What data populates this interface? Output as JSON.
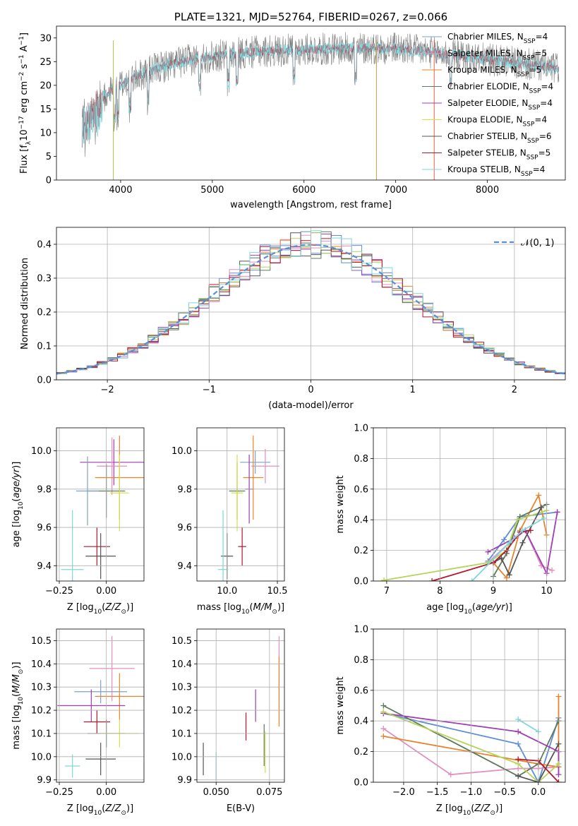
{
  "chart_data": [
    {
      "type": "line",
      "title": "PLATE=1321, MJD=52764, FIBERID=0267, z=0.066",
      "xlabel": "wavelength [Angstrom, rest frame]",
      "ylabel": "Flux [f_λ 10^-17 erg cm^-2 s^-1 A^-1]",
      "xlim": [
        3300,
        8850
      ],
      "ylim": [
        0,
        32.5
      ],
      "xticks": [
        "4000",
        "5000",
        "6000",
        "7000",
        "8000"
      ],
      "yticks": [
        "0",
        "5",
        "10",
        "15",
        "20",
        "25",
        "30"
      ],
      "legend": "upper-right",
      "legend_entries": [
        {
          "name": "Chabrier MILES, N_SSP=4",
          "label": "Chabrier MILES, N",
          "sub": "SSP",
          "tail": "=4",
          "color": "#7aa3c7"
        },
        {
          "name": "Salpeter MILES, N_SSP=5",
          "label": "Salpeter MILES, N",
          "sub": "SSP",
          "tail": "=5",
          "color": "#e38fbf"
        },
        {
          "name": "Kroupa MILES, N_SSP=5",
          "label": "Kroupa MILES, N",
          "sub": "SSP",
          "tail": "=5",
          "color": "#e8832b"
        },
        {
          "name": "Chabrier ELODIE, N_SSP=4",
          "label": "Chabrier ELODIE, N",
          "sub": "SSP",
          "tail": "=4",
          "color": "#5e7a5e"
        },
        {
          "name": "Salpeter ELODIE, N_SSP=4",
          "label": "Salpeter ELODIE, N",
          "sub": "SSP",
          "tail": "=4",
          "color": "#a03cb4"
        },
        {
          "name": "Kroupa ELODIE, N_SSP=4",
          "label": "Kroupa ELODIE, N",
          "sub": "SSP",
          "tail": "=4",
          "color": "#d4e04a"
        },
        {
          "name": "Chabrier STELIB, N_SSP=6",
          "label": "Chabrier STELIB, N",
          "sub": "SSP",
          "tail": "=6",
          "color": "#555555"
        },
        {
          "name": "Salpeter STELIB, N_SSP=5",
          "label": "Salpeter STELIB, N",
          "sub": "SSP",
          "tail": "=5",
          "color": "#b2182b"
        },
        {
          "name": "Kroupa STELIB, N_SSP=4",
          "label": "Kroupa STELIB, N",
          "sub": "SSP",
          "tail": "=4",
          "color": "#7fd6dc"
        }
      ],
      "data_color": "#808080",
      "model_color": "#7fd6dc",
      "spikes": [
        {
          "x": 3920,
          "color": "#b8c24a"
        },
        {
          "x": 6790,
          "color": "#c2a04a"
        },
        {
          "x": 7420,
          "color": "#e0604a"
        }
      ]
    },
    {
      "type": "histogram",
      "xlabel": "(data-model)/error",
      "ylabel": "Normed distribution",
      "xlim": [
        -2.5,
        2.5
      ],
      "ylim": [
        0,
        0.45
      ],
      "xticks": [
        "−2",
        "−1",
        "0",
        "1",
        "2"
      ],
      "yticks": [
        "0.0",
        "0.1",
        "0.2",
        "0.3",
        "0.4"
      ],
      "bin_width": 0.1,
      "legend": "upper-right",
      "reference_curve": {
        "label": "𝒩(0, 1)",
        "mean": 0,
        "sigma": 1,
        "color": "#5b8ed6"
      },
      "series_colors": [
        "#5b8ed6",
        "#e38fbf",
        "#e8832b",
        "#5e7a5e",
        "#a03cb4",
        "#b5d45a",
        "#555555",
        "#b2182b",
        "#7fd6dc"
      ]
    },
    {
      "type": "errorbar",
      "xlabel": "Z [log10(Z/Z⊙)]",
      "ylabel": "age  [log10(age/yr)]",
      "xlim": [
        -0.265,
        0.2
      ],
      "ylim": [
        9.32,
        10.12
      ],
      "xticks": [
        "−0.25",
        "0.00"
      ],
      "yticks": [
        "9.4",
        "9.6",
        "9.8",
        "10.0"
      ],
      "points": [
        {
          "x": 0.04,
          "y": 9.94,
          "xerr": 0.18,
          "yerr": 0.12,
          "color": "#a03cb4"
        },
        {
          "x": 0.03,
          "y": 9.92,
          "xerr": 0.08,
          "yerr": 0.15,
          "color": "#e38fbf"
        },
        {
          "x": 0.07,
          "y": 9.86,
          "xerr": 0.13,
          "yerr": 0.22,
          "color": "#e8832b"
        },
        {
          "x": 0.0,
          "y": 9.79,
          "xerr": 0.1,
          "yerr": 0.14,
          "color": "#5e7a5e"
        },
        {
          "x": 0.07,
          "y": 9.78,
          "xerr": 0.05,
          "yerr": 0.2,
          "color": "#d4e04a"
        },
        {
          "x": -0.1,
          "y": 9.79,
          "xerr": 0.06,
          "yerr": 0.18,
          "color": "#7aa3c7"
        },
        {
          "x": -0.05,
          "y": 9.5,
          "xerr": 0.07,
          "yerr": 0.1,
          "color": "#b2182b"
        },
        {
          "x": -0.03,
          "y": 9.45,
          "xerr": 0.08,
          "yerr": 0.12,
          "color": "#555555"
        },
        {
          "x": -0.18,
          "y": 9.38,
          "xerr": 0.06,
          "yerr": 0.31,
          "color": "#7fd6dc"
        }
      ]
    },
    {
      "type": "errorbar",
      "xlabel": "mass [log10(M/M⊙)]",
      "xlim": [
        9.7,
        10.57
      ],
      "ylim": [
        9.32,
        10.12
      ],
      "xticks": [
        "10.0",
        "10.5"
      ],
      "yticks": [
        "9.4",
        "9.6",
        "9.8",
        "10.0"
      ],
      "points": [
        {
          "x": 10.28,
          "y": 9.94,
          "xerr": 0.15,
          "yerr": 0.06,
          "color": "#7aa3c7"
        },
        {
          "x": 10.38,
          "y": 9.92,
          "xerr": 0.14,
          "yerr": 0.09,
          "color": "#e38fbf"
        },
        {
          "x": 10.26,
          "y": 9.86,
          "xerr": 0.1,
          "yerr": 0.22,
          "color": "#e8832b"
        },
        {
          "x": 10.1,
          "y": 9.79,
          "xerr": 0.08,
          "yerr": 0.15,
          "color": "#5e7a5e"
        },
        {
          "x": 10.1,
          "y": 9.78,
          "xerr": 0.06,
          "yerr": 0.2,
          "color": "#d4e04a"
        },
        {
          "x": 10.22,
          "y": 9.8,
          "xerr": 0.04,
          "yerr": 0.18,
          "color": "#a03cb4"
        },
        {
          "x": 10.15,
          "y": 9.5,
          "xerr": 0.04,
          "yerr": 0.1,
          "color": "#b2182b"
        },
        {
          "x": 10.0,
          "y": 9.45,
          "xerr": 0.06,
          "yerr": 0.12,
          "color": "#555555"
        },
        {
          "x": 9.96,
          "y": 9.38,
          "xerr": 0.05,
          "yerr": 0.31,
          "color": "#7fd6dc"
        }
      ]
    },
    {
      "type": "line",
      "xlabel": "age  [log10(age/yr)]",
      "ylabel": "mass weight",
      "xlim": [
        6.75,
        10.35
      ],
      "ylim": [
        0,
        1.0
      ],
      "xticks": [
        "7",
        "8",
        "9",
        "10"
      ],
      "yticks": [
        "0.0",
        "0.2",
        "0.4",
        "0.6",
        "0.8",
        "1.0"
      ],
      "series": [
        {
          "color": "#5b8ed6",
          "x": [
            8.9,
            9.2,
            9.5,
            10.2
          ],
          "y": [
            0.13,
            0.27,
            0.42,
            0.45
          ]
        },
        {
          "color": "#e38fbf",
          "x": [
            8.9,
            9.3,
            9.6,
            9.9,
            10.1
          ],
          "y": [
            0.12,
            0.25,
            0.33,
            0.1,
            0.07
          ]
        },
        {
          "color": "#e8832b",
          "x": [
            9.0,
            9.25,
            9.5,
            9.85,
            10.0
          ],
          "y": [
            0.12,
            0.02,
            0.33,
            0.56,
            0.3
          ]
        },
        {
          "color": "#5e7a5e",
          "x": [
            9.0,
            9.25,
            9.5,
            10.0
          ],
          "y": [
            0.03,
            0.18,
            0.42,
            0.5
          ]
        },
        {
          "color": "#a03cb4",
          "x": [
            8.9,
            9.4,
            9.6,
            10.0,
            10.2
          ],
          "y": [
            0.19,
            0.28,
            0.33,
            0.05,
            0.45
          ]
        },
        {
          "color": "#b5d45a",
          "x": [
            6.95,
            8.9,
            9.25,
            9.45,
            10.0
          ],
          "y": [
            0.005,
            0.12,
            0.2,
            0.4,
            0.46
          ]
        },
        {
          "color": "#555555",
          "x": [
            9.0,
            9.15,
            9.3,
            9.55,
            9.9
          ],
          "y": [
            0.12,
            0.15,
            0.04,
            0.25,
            0.48
          ]
        },
        {
          "color": "#b2182b",
          "x": [
            7.85,
            9.0,
            9.25,
            9.5,
            9.7
          ],
          "y": [
            0.0,
            0.12,
            0.2,
            0.32,
            0.33
          ]
        },
        {
          "color": "#7fd6dc",
          "x": [
            8.6,
            9.3,
            9.55,
            9.95
          ],
          "y": [
            0.0,
            0.25,
            0.33,
            0.41
          ]
        }
      ]
    },
    {
      "type": "errorbar",
      "xlabel": "Z [log10(Z/Z⊙)]",
      "ylabel": "mass [log10(M/M⊙)]",
      "xlim": [
        -0.265,
        0.2
      ],
      "ylim": [
        9.89,
        10.55
      ],
      "xticks": [
        "−0.25",
        "0.00"
      ],
      "yticks": [
        "9.9",
        "10.0",
        "10.1",
        "10.2",
        "10.3",
        "10.4",
        "10.5"
      ],
      "points": [
        {
          "x": 0.03,
          "y": 10.38,
          "xerr": 0.12,
          "yerr": 0.14,
          "color": "#e38fbf"
        },
        {
          "x": -0.03,
          "y": 10.28,
          "xerr": 0.14,
          "yerr": 0.05,
          "color": "#7aa3c7"
        },
        {
          "x": 0.07,
          "y": 10.26,
          "xerr": 0.13,
          "yerr": 0.1,
          "color": "#e8832b"
        },
        {
          "x": -0.08,
          "y": 10.22,
          "xerr": 0.18,
          "yerr": 0.07,
          "color": "#a03cb4"
        },
        {
          "x": -0.05,
          "y": 10.15,
          "xerr": 0.07,
          "yerr": 0.05,
          "color": "#b2182b"
        },
        {
          "x": 0.0,
          "y": 10.1,
          "xerr": 0.1,
          "yerr": 0.06,
          "color": "#5e7a5e"
        },
        {
          "x": 0.07,
          "y": 10.1,
          "xerr": 0.1,
          "yerr": 0.06,
          "color": "#d4e04a"
        },
        {
          "x": -0.03,
          "y": 9.99,
          "xerr": 0.08,
          "yerr": 0.07,
          "color": "#555555"
        },
        {
          "x": -0.18,
          "y": 9.96,
          "xerr": 0.04,
          "yerr": 0.05,
          "color": "#7fd6dc"
        }
      ]
    },
    {
      "type": "errorbar",
      "xlabel": "E(B-V)",
      "xlim": [
        0.041,
        0.082
      ],
      "ylim": [
        9.89,
        10.55
      ],
      "xticks": [
        "0.050",
        "0.075"
      ],
      "yticks": [
        "9.9",
        "10.0",
        "10.1",
        "10.2",
        "10.3",
        "10.4",
        "10.5"
      ],
      "points": [
        {
          "x": 0.0795,
          "y": 10.38,
          "xerr": 0,
          "yerr": 0.14,
          "color": "#e38fbf"
        },
        {
          "x": 0.0795,
          "y": 10.28,
          "xerr": 0,
          "yerr": 0.15,
          "color": "#e8832b"
        },
        {
          "x": 0.0685,
          "y": 10.22,
          "xerr": 0,
          "yerr": 0.07,
          "color": "#a03cb4"
        },
        {
          "x": 0.064,
          "y": 10.13,
          "xerr": 0,
          "yerr": 0.06,
          "color": "#b2182b"
        },
        {
          "x": 0.0725,
          "y": 10.05,
          "xerr": 0,
          "yerr": 0.09,
          "color": "#5e7a5e"
        },
        {
          "x": 0.073,
          "y": 10.02,
          "xerr": 0,
          "yerr": 0.09,
          "color": "#d4e04a"
        },
        {
          "x": 0.044,
          "y": 9.99,
          "xerr": 0,
          "yerr": 0.07,
          "color": "#555555"
        },
        {
          "x": 0.05,
          "y": 9.96,
          "xerr": 0,
          "yerr": 0.06,
          "color": "#7fd6dc"
        }
      ]
    },
    {
      "type": "line",
      "xlabel": "Z [log10(Z/Z⊙)]",
      "ylabel": "mass weight",
      "xlim": [
        -2.45,
        0.4
      ],
      "ylim": [
        0,
        1.0
      ],
      "xticks": [
        "−2.0",
        "−1.5",
        "−1.0",
        "−0.5",
        "0.0"
      ],
      "yticks": [
        "0.0",
        "0.2",
        "0.4",
        "0.6",
        "0.8",
        "1.0"
      ],
      "series": [
        {
          "color": "#5b8ed6",
          "x": [
            -2.3,
            -0.3,
            0.0,
            0.3
          ],
          "y": [
            0.45,
            0.25,
            0.0,
            0.42
          ]
        },
        {
          "color": "#e38fbf",
          "x": [
            -2.3,
            -1.3,
            -0.3,
            0.0,
            0.3
          ],
          "y": [
            0.35,
            0.05,
            0.09,
            0.09,
            0.1
          ]
        },
        {
          "color": "#e8832b",
          "x": [
            -2.3,
            0.0,
            0.3,
            0.3
          ],
          "y": [
            0.3,
            0.12,
            0.1,
            0.56
          ]
        },
        {
          "color": "#5e7a5e",
          "x": [
            -2.3,
            -0.3,
            0.0,
            0.3
          ],
          "y": [
            0.5,
            0.04,
            0.12,
            0.4
          ]
        },
        {
          "color": "#a03cb4",
          "x": [
            -2.3,
            -0.3,
            0.3,
            0.3
          ],
          "y": [
            0.45,
            0.33,
            0.2,
            0.05
          ]
        },
        {
          "color": "#b5d45a",
          "x": [
            -2.3,
            -0.3,
            0.0,
            0.3
          ],
          "y": [
            0.46,
            0.12,
            0.0,
            0.12
          ]
        },
        {
          "color": "#555555",
          "x": [
            -0.3,
            0.0,
            0.3
          ],
          "y": [
            0.04,
            0.0,
            0.25
          ]
        },
        {
          "color": "#b2182b",
          "x": [
            -0.3,
            0.0,
            0.3
          ],
          "y": [
            0.15,
            0.14,
            0.0
          ]
        },
        {
          "color": "#7fd6dc",
          "x": [
            -0.3,
            0.0
          ],
          "y": [
            0.41,
            0.33
          ]
        }
      ]
    }
  ]
}
